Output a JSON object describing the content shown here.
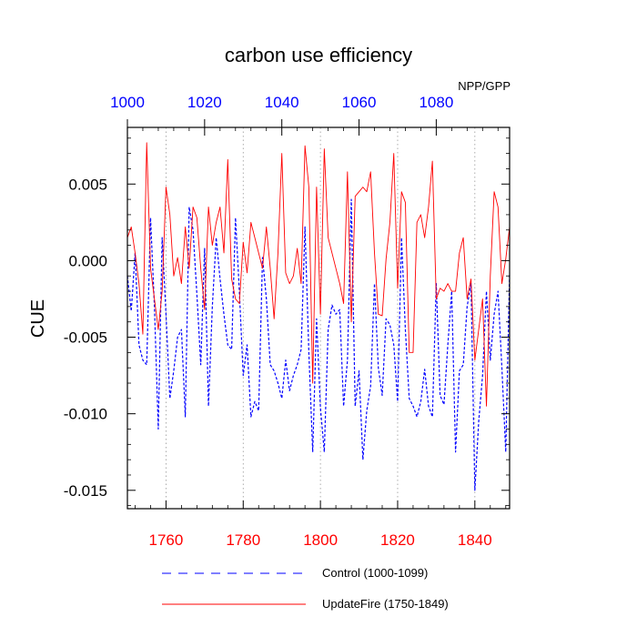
{
  "chart_data": {
    "type": "line",
    "title": "carbon use efficiency",
    "corner_label": "NPP/GPP",
    "ylabel": "CUE",
    "ylim": [
      -0.0162,
      0.0087
    ],
    "yticks": [
      0.005,
      0.0,
      -0.005,
      -0.01,
      -0.015
    ],
    "ytick_labels": [
      "0.005",
      "0.000",
      "-0.005",
      "-0.010",
      "-0.015"
    ],
    "bottom_axis": {
      "range": [
        1750,
        1849
      ],
      "ticks": [
        1760,
        1780,
        1800,
        1820,
        1840
      ],
      "tick_labels": [
        "1760",
        "1780",
        "1800",
        "1820",
        "1840"
      ],
      "color": "#ff0000"
    },
    "top_axis": {
      "range": [
        1000,
        1099
      ],
      "ticks": [
        1000,
        1020,
        1040,
        1060,
        1080
      ],
      "tick_labels": [
        "1000",
        "1020",
        "1040",
        "1060",
        "1080"
      ],
      "color": "#0000ff"
    },
    "grid": "vertical dotted at bottom-axis ticks",
    "series": [
      {
        "name": "Control (1000-1099)",
        "axis": "top",
        "color": "#0000ff",
        "style": "dashed",
        "x_start": 1000,
        "values": [
          -0.001,
          -0.0033,
          0.0005,
          -0.0055,
          -0.0065,
          -0.0068,
          0.0028,
          -0.003,
          -0.011,
          0.0015,
          -0.0035,
          -0.009,
          -0.0072,
          -0.005,
          -0.0045,
          -0.0102,
          0.0035,
          0.002,
          -0.0022,
          -0.0068,
          0.0008,
          -0.0095,
          -0.003,
          0.0015,
          -0.0012,
          -0.0035,
          -0.0055,
          -0.0058,
          0.0028,
          -0.002,
          -0.0075,
          -0.0055,
          -0.0102,
          -0.0092,
          -0.0098,
          0.0002,
          -0.0025,
          -0.0068,
          -0.0072,
          -0.008,
          -0.009,
          -0.0065,
          -0.0085,
          -0.0075,
          -0.0068,
          -0.0058,
          0.0022,
          -0.006,
          -0.0125,
          -0.0038,
          -0.0096,
          -0.0125,
          -0.0045,
          -0.0029,
          -0.0035,
          -0.0032,
          -0.0095,
          -0.0065,
          0.004,
          -0.0095,
          -0.0072,
          -0.013,
          -0.0098,
          -0.0082,
          -0.0015,
          -0.007,
          -0.0088,
          -0.0038,
          -0.0042,
          -0.0055,
          -0.0092,
          0.0015,
          -0.0045,
          -0.009,
          -0.0095,
          -0.0102,
          -0.0092,
          -0.0071,
          -0.0095,
          -0.0102,
          -0.0015,
          -0.0088,
          -0.0094,
          -0.0055,
          -0.002,
          -0.0125,
          -0.0072,
          -0.0068,
          -0.003,
          -0.0015,
          -0.015,
          -0.0105,
          -0.0075,
          -0.002,
          -0.0065,
          -0.0035,
          -0.002,
          -0.007,
          -0.0125,
          -0.0008
        ]
      },
      {
        "name": "UpdateFire (1750-1849)",
        "axis": "bottom",
        "color": "#ff0000",
        "style": "solid",
        "x_start": 1750,
        "values": [
          0.0015,
          0.0022,
          0.0005,
          -0.0015,
          -0.0048,
          0.0077,
          -0.0005,
          -0.0025,
          -0.0045,
          -0.002,
          0.0048,
          0.003,
          -0.001,
          0.0002,
          -0.0015,
          0.0022,
          -0.0005,
          0.0035,
          0.0028,
          -0.0005,
          -0.0032,
          0.0035,
          0.001,
          0.0025,
          0.0035,
          0.0005,
          0.0066,
          -0.0012,
          -0.0025,
          -0.0028,
          0.0012,
          -0.0008,
          0.0025,
          0.0015,
          0.0005,
          -0.0005,
          0.0022,
          -0.0005,
          -0.0038,
          0.0005,
          0.007,
          -0.0008,
          -0.0015,
          -0.001,
          0.0008,
          -0.0015,
          0.0075,
          0.0048,
          -0.008,
          0.0048,
          -0.0035,
          0.0073,
          0.0015,
          0.0005,
          -0.0005,
          -0.0015,
          -0.0028,
          0.0058,
          -0.004,
          0.0042,
          0.0045,
          0.0048,
          0.0045,
          0.0058,
          0.0005,
          -0.0035,
          -0.0036,
          0.0001,
          0.0025,
          0.007,
          -0.0018,
          0.0045,
          0.0038,
          -0.006,
          -0.006,
          0.0025,
          0.003,
          0.0015,
          0.0035,
          0.0065,
          -0.0025,
          -0.0018,
          -0.002,
          -0.0015,
          -0.002,
          -0.002,
          0.0005,
          0.0015,
          -0.0025,
          -0.0012,
          -0.0065,
          -0.0045,
          -0.0025,
          -0.0095,
          -0.001,
          0.0045,
          0.0035,
          -0.0015,
          0.0001,
          0.0022
        ]
      }
    ]
  }
}
